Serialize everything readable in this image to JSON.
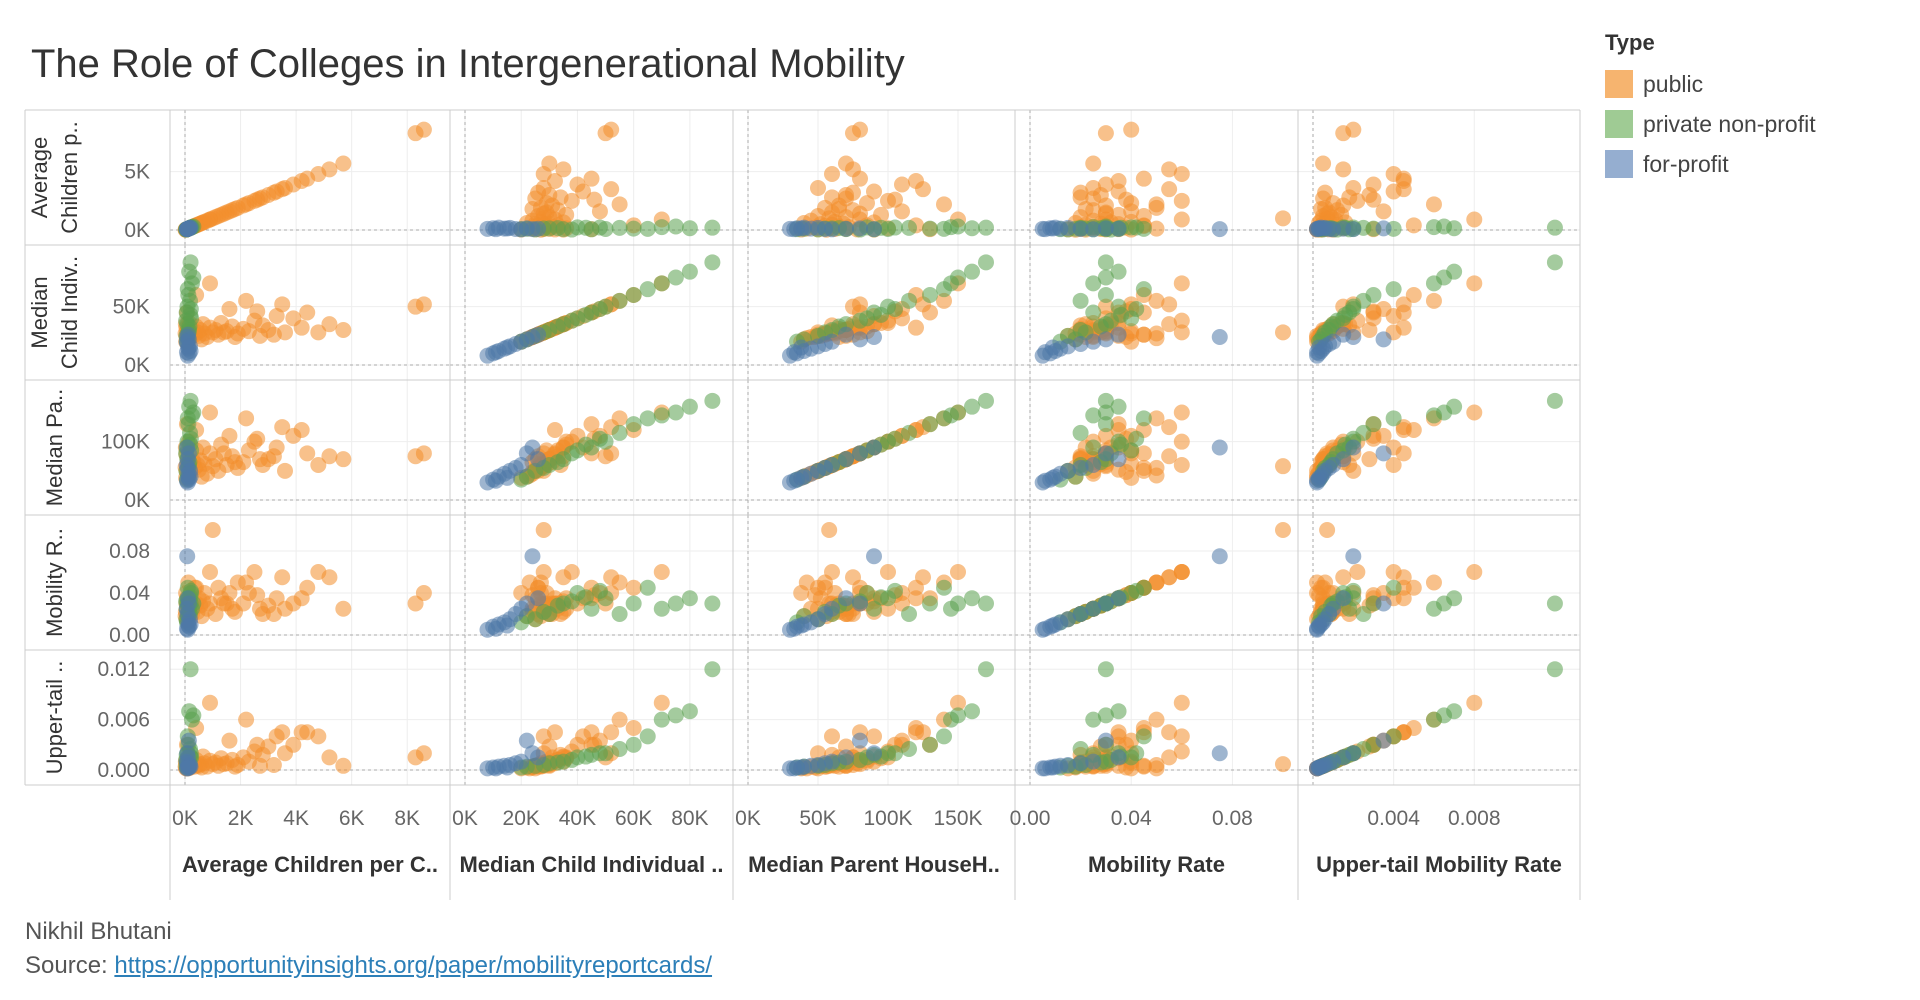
{
  "title": "The Role of Colleges in Intergenerational Mobility",
  "legend": {
    "title": "Type",
    "items": [
      {
        "label": "public",
        "color": "#f28e2b"
      },
      {
        "label": "private non-profit",
        "color": "#59a14f"
      },
      {
        "label": "for-profit",
        "color": "#4e79a7"
      }
    ]
  },
  "footer": {
    "author": "Nikhil Bhutani",
    "source_prefix": "Source: ",
    "source_link": "https://opportunityinsights.org/paper/mobilityreportcards/"
  },
  "chart_data": {
    "type": "scatter",
    "layout": "scatter-matrix",
    "variables": [
      {
        "key": "avg_children",
        "col_label": "Average Children per C..",
        "row_label": [
          "Average",
          "Children p.."
        ],
        "range": [
          0,
          9000
        ],
        "col_ticks": [
          {
            "v": 0,
            "t": "0K"
          },
          {
            "v": 2000,
            "t": "2K"
          },
          {
            "v": 4000,
            "t": "4K"
          },
          {
            "v": 6000,
            "t": "6K"
          },
          {
            "v": 8000,
            "t": "8K"
          }
        ],
        "row_ticks": [
          {
            "v": 0,
            "t": "0K"
          },
          {
            "v": 5000,
            "t": "5K"
          }
        ]
      },
      {
        "key": "median_child_income",
        "col_label": "Median Child Individual ..",
        "row_label": [
          "Median",
          "Child Indiv.."
        ],
        "range": [
          0,
          90000
        ],
        "col_ticks": [
          {
            "v": 0,
            "t": "0K"
          },
          {
            "v": 20000,
            "t": "20K"
          },
          {
            "v": 40000,
            "t": "40K"
          },
          {
            "v": 60000,
            "t": "60K"
          },
          {
            "v": 80000,
            "t": "80K"
          }
        ],
        "row_ticks": [
          {
            "v": 0,
            "t": "0K"
          },
          {
            "v": 50000,
            "t": "50K"
          }
        ]
      },
      {
        "key": "median_parent_income",
        "col_label": "Median Parent HouseH..",
        "row_label": [
          "Median Pa.."
        ],
        "range": [
          0,
          180000
        ],
        "col_ticks": [
          {
            "v": 0,
            "t": "0K"
          },
          {
            "v": 50000,
            "t": "50K"
          },
          {
            "v": 100000,
            "t": "100K"
          },
          {
            "v": 150000,
            "t": "150K"
          }
        ],
        "row_ticks": [
          {
            "v": 0,
            "t": "0K"
          },
          {
            "v": 100000,
            "t": "100K"
          }
        ]
      },
      {
        "key": "mobility_rate",
        "col_label": "Mobility Rate",
        "row_label": [
          "Mobility R.."
        ],
        "range": [
          0,
          0.1
        ],
        "col_ticks": [
          {
            "v": 0,
            "t": "0.00"
          },
          {
            "v": 0.04,
            "t": "0.04"
          },
          {
            "v": 0.08,
            "t": "0.08"
          }
        ],
        "row_ticks": [
          {
            "v": 0,
            "t": "0.00"
          },
          {
            "v": 0.04,
            "t": "0.04"
          },
          {
            "v": 0.08,
            "t": "0.08"
          }
        ]
      },
      {
        "key": "upper_tail_mobility",
        "col_label": "Upper-tail Mobility Rate",
        "row_label": [
          "Upper-tail .."
        ],
        "range": [
          0,
          0.0125
        ],
        "col_ticks": [
          {
            "v": 0.004,
            "t": "0.004"
          },
          {
            "v": 0.008,
            "t": "0.008"
          }
        ],
        "row_ticks": [
          {
            "v": 0,
            "t": "0.000"
          },
          {
            "v": 0.006,
            "t": "0.006"
          },
          {
            "v": 0.012,
            "t": "0.012"
          }
        ]
      }
    ],
    "series": [
      {
        "name": "public",
        "color": "#f28e2b",
        "points": [
          [
            8600,
            52000,
            80000,
            0.04,
            0.002
          ],
          [
            8300,
            50000,
            75000,
            0.03,
            0.0015
          ],
          [
            5700,
            30000,
            70000,
            0.025,
            0.0005
          ],
          [
            5200,
            35000,
            75000,
            0.055,
            0.0015
          ],
          [
            4800,
            28000,
            60000,
            0.06,
            0.004
          ],
          [
            4400,
            45000,
            80000,
            0.045,
            0.0045
          ],
          [
            4200,
            32000,
            120000,
            0.035,
            0.0045
          ],
          [
            3900,
            40000,
            110000,
            0.03,
            0.003
          ],
          [
            3600,
            28000,
            50000,
            0.025,
            0.002
          ],
          [
            3300,
            42000,
            90000,
            0.035,
            0.004
          ],
          [
            3000,
            30000,
            70000,
            0.028,
            0.0028
          ],
          [
            2800,
            34000,
            60000,
            0.02,
            0.0018
          ],
          [
            2500,
            38000,
            100000,
            0.06,
            0.0022
          ],
          [
            2300,
            29000,
            85000,
            0.04,
            0.001
          ],
          [
            2100,
            31000,
            65000,
            0.03,
            0.0015
          ],
          [
            1900,
            27000,
            55000,
            0.05,
            0.0006
          ],
          [
            1700,
            33000,
            75000,
            0.025,
            0.0012
          ],
          [
            1500,
            29000,
            60000,
            0.03,
            0.0008
          ],
          [
            1300,
            36000,
            95000,
            0.035,
            0.0014
          ],
          [
            1200,
            26000,
            50000,
            0.045,
            0.0005
          ],
          [
            1100,
            30000,
            70000,
            0.02,
            0.0009
          ],
          [
            1000,
            28000,
            58000,
            0.1,
            0.0007
          ],
          [
            900,
            32000,
            80000,
            0.03,
            0.0011
          ],
          [
            800,
            24000,
            45000,
            0.025,
            0.0004
          ],
          [
            700,
            27000,
            62000,
            0.04,
            0.0008
          ],
          [
            650,
            35000,
            90000,
            0.032,
            0.0016
          ],
          [
            600,
            22000,
            40000,
            0.018,
            0.0003
          ],
          [
            550,
            30000,
            68000,
            0.028,
            0.0007
          ],
          [
            500,
            25000,
            52000,
            0.035,
            0.0005
          ],
          [
            450,
            28000,
            60000,
            0.022,
            0.0006
          ],
          [
            400,
            33000,
            85000,
            0.03,
            0.0012
          ],
          [
            350,
            26000,
            55000,
            0.045,
            0.0004
          ],
          [
            300,
            29000,
            65000,
            0.025,
            0.0008
          ],
          [
            250,
            31000,
            72000,
            0.02,
            0.0009
          ],
          [
            200,
            24000,
            48000,
            0.038,
            0.0003
          ],
          [
            180,
            27000,
            58000,
            0.03,
            0.0005
          ],
          [
            150,
            36000,
            100000,
            0.025,
            0.0015
          ],
          [
            120,
            23000,
            42000,
            0.05,
            0.0002
          ],
          [
            100,
            30000,
            70000,
            0.02,
            0.0006
          ],
          [
            90,
            28000,
            62000,
            0.028,
            0.0005
          ],
          [
            70,
            45000,
            130000,
            0.035,
            0.003
          ],
          [
            60,
            25000,
            50000,
            0.015,
            0.0002
          ],
          [
            50,
            32000,
            78000,
            0.03,
            0.0008
          ],
          [
            40,
            20000,
            38000,
            0.04,
            0.0002
          ],
          [
            30,
            35000,
            90000,
            0.022,
            0.001
          ],
          [
            20,
            27000,
            56000,
            0.018,
            0.0004
          ],
          [
            3200,
            26000,
            75000,
            0.02,
            0.0006
          ],
          [
            2700,
            25000,
            70000,
            0.025,
            0.0005
          ],
          [
            1800,
            24000,
            65000,
            0.022,
            0.0004
          ],
          [
            1400,
            28000,
            80000,
            0.03,
            0.0007
          ],
          [
            2200,
            55000,
            140000,
            0.05,
            0.006
          ],
          [
            900,
            70000,
            150000,
            0.06,
            0.008
          ],
          [
            400,
            60000,
            120000,
            0.045,
            0.005
          ],
          [
            1600,
            48000,
            110000,
            0.04,
            0.0035
          ],
          [
            3500,
            52000,
            125000,
            0.055,
            0.0045
          ],
          [
            2600,
            46000,
            105000,
            0.038,
            0.003
          ]
        ]
      },
      {
        "name": "private non-profit",
        "color": "#59a14f",
        "points": [
          [
            200,
            88000,
            170000,
            0.03,
            0.012
          ],
          [
            150,
            80000,
            160000,
            0.035,
            0.007
          ],
          [
            300,
            75000,
            150000,
            0.03,
            0.0065
          ],
          [
            250,
            70000,
            145000,
            0.025,
            0.006
          ],
          [
            100,
            65000,
            140000,
            0.045,
            0.004
          ],
          [
            120,
            60000,
            130000,
            0.03,
            0.003
          ],
          [
            180,
            55000,
            115000,
            0.02,
            0.0025
          ],
          [
            90,
            50000,
            100000,
            0.035,
            0.002
          ],
          [
            60,
            45000,
            90000,
            0.025,
            0.0018
          ],
          [
            220,
            40000,
            85000,
            0.04,
            0.0015
          ],
          [
            80,
            35000,
            70000,
            0.03,
            0.001
          ],
          [
            140,
            30000,
            60000,
            0.02,
            0.0008
          ],
          [
            50,
            25000,
            50000,
            0.015,
            0.0005
          ],
          [
            110,
            22000,
            40000,
            0.018,
            0.0004
          ],
          [
            70,
            20000,
            35000,
            0.012,
            0.0003
          ],
          [
            130,
            28000,
            55000,
            0.022,
            0.0006
          ],
          [
            160,
            33000,
            65000,
            0.028,
            0.0009
          ],
          [
            40,
            38000,
            80000,
            0.032,
            0.0012
          ],
          [
            190,
            43000,
            95000,
            0.036,
            0.0016
          ],
          [
            210,
            48000,
            105000,
            0.042,
            0.002
          ]
        ]
      },
      {
        "name": "for-profit",
        "color": "#4e79a7",
        "points": [
          [
            100,
            8000,
            30000,
            0.005,
            0.0002
          ],
          [
            150,
            10000,
            35000,
            0.008,
            0.0003
          ],
          [
            200,
            12000,
            40000,
            0.01,
            0.0004
          ],
          [
            120,
            14000,
            45000,
            0.012,
            0.0005
          ],
          [
            180,
            16000,
            50000,
            0.015,
            0.0006
          ],
          [
            90,
            18000,
            55000,
            0.02,
            0.0008
          ],
          [
            60,
            20000,
            60000,
            0.025,
            0.001
          ],
          [
            140,
            22000,
            80000,
            0.03,
            0.0035
          ],
          [
            80,
            24000,
            90000,
            0.075,
            0.002
          ],
          [
            110,
            26000,
            70000,
            0.035,
            0.0015
          ],
          [
            130,
            15000,
            38000,
            0.009,
            0.0003
          ],
          [
            70,
            11000,
            33000,
            0.006,
            0.0002
          ]
        ]
      }
    ]
  }
}
